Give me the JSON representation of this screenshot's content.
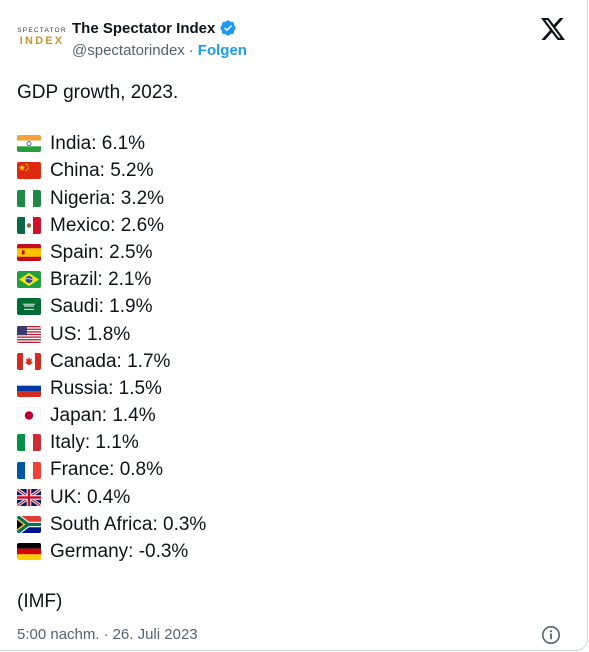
{
  "account": {
    "avatar_line1": "SPECTATOR",
    "avatar_line2": "INDEX",
    "display_name": "The Spectator Index",
    "handle": "@spectatorindex",
    "separator": "·",
    "follow_label": "Folgen"
  },
  "tweet": {
    "headline": "GDP growth, 2023.",
    "items": [
      {
        "text": "India: 6.1%",
        "flag": "india-flag"
      },
      {
        "text": "China: 5.2%",
        "flag": "china-flag"
      },
      {
        "text": "Nigeria: 3.2%",
        "flag": "nigeria-flag"
      },
      {
        "text": "Mexico: 2.6%",
        "flag": "mexico-flag"
      },
      {
        "text": "Spain: 2.5%",
        "flag": "spain-flag"
      },
      {
        "text": "Brazil: 2.1%",
        "flag": "brazil-flag"
      },
      {
        "text": "Saudi: 1.9%",
        "flag": "saudi-flag"
      },
      {
        "text": "US: 1.8%",
        "flag": "us-flag"
      },
      {
        "text": "Canada: 1.7%",
        "flag": "canada-flag"
      },
      {
        "text": "Russia: 1.5%",
        "flag": "russia-flag"
      },
      {
        "text": "Japan: 1.4%",
        "flag": "japan-flag"
      },
      {
        "text": "Italy: 1.1%",
        "flag": "italy-flag"
      },
      {
        "text": "France: 0.8%",
        "flag": "france-flag"
      },
      {
        "text": "UK: 0.4%",
        "flag": "uk-flag"
      },
      {
        "text": "South Africa: 0.3%",
        "flag": "south-africa-flag"
      },
      {
        "text": "Germany: -0.3%",
        "flag": "germany-flag"
      }
    ],
    "source": "(IMF)"
  },
  "meta": {
    "time": "5:00 nachm.",
    "separator": "·",
    "date": "26. Juli 2023"
  },
  "icons": {
    "verified": "verified-badge-icon",
    "logo": "x-logo-icon",
    "info": "info-icon"
  },
  "colors": {
    "follow": "#1d9bf0",
    "verified": "#1d9bf0",
    "secondary_text": "#536471",
    "avatar_gold": "#c7952d"
  }
}
